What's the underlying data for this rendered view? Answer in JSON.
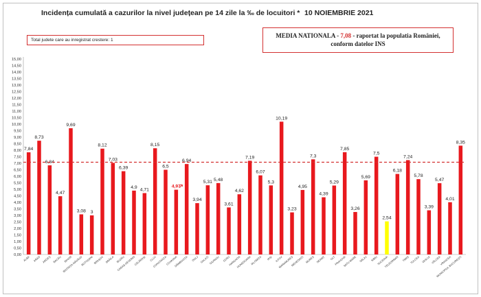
{
  "header": {
    "title": "Incidența cumulată a cazurilor la nivel județean pe 14 zile la ‰ de locuitori *",
    "date": "10 NOIEMBRIE 2021"
  },
  "info_left": "Total judete care au inregistrat crestere: 1",
  "info_right": {
    "prefix": "MEDIA NATIONALA - ",
    "value": "7,08",
    "suffix": " -  raportat la populatia României,",
    "line2": "conform datelor INS"
  },
  "colors": {
    "bar": "#e8191e",
    "highlight": "#ffff00",
    "average_line": "#d32f2f",
    "increase_label": "#e8191e"
  },
  "chart_data": {
    "type": "bar",
    "title": "Incidența cumulată a cazurilor la nivel județean pe 14 zile la ‰ de locuitori *",
    "ylim": [
      0,
      15
    ],
    "ytick_step": 0.5,
    "average": 7.08,
    "categories": [
      "ALBA",
      "ARAD",
      "ARGEȘ",
      "BACĂU",
      "BIHOR",
      "BISTRIȚA-NĂSĂUD",
      "BOTOȘANI",
      "BRAȘOV",
      "BRĂILA",
      "BUZĂU",
      "CARAȘ-SEVERIN",
      "CĂLĂRAȘI",
      "CLUJ",
      "CONSTANȚA",
      "COVASNA",
      "DÂMBOVIȚA",
      "DOLJ",
      "GALAȚI",
      "GIURGIU",
      "GORJ",
      "HARGHITA",
      "HUNEDOARA",
      "IALOMIȚA",
      "IAȘI",
      "ILFOV",
      "MARAMUREȘ",
      "MEHEDINȚI",
      "MUREȘ",
      "NEAMȚ",
      "OLT",
      "PRAHOVA",
      "SATU MARE",
      "SĂLAJ",
      "SIBIU",
      "SUCEAVA",
      "TELEORMAN",
      "TIMIȘ",
      "TULCEA",
      "VASLUI",
      "VÂLCEA",
      "VRANCEA",
      "MUNICIPIUL BUCUREȘTI"
    ],
    "values": [
      7.84,
      8.73,
      6.84,
      4.47,
      9.69,
      3.08,
      3,
      8.12,
      7.03,
      6.39,
      4.9,
      4.71,
      8.15,
      6.5,
      4.97,
      6.94,
      3.94,
      5.31,
      5.48,
      3.61,
      4.62,
      7.19,
      6.07,
      5.3,
      10.19,
      3.23,
      4.95,
      7.3,
      4.39,
      5.29,
      7.85,
      3.26,
      5.69,
      7.5,
      2.54,
      6.18,
      7.24,
      5.78,
      3.39,
      5.47,
      4.01,
      8.35
    ],
    "labels": [
      "7,84",
      "8,73",
      "6,84",
      "4,47",
      "9,69",
      "3,08",
      "3",
      "8,12",
      "7,03",
      "6,39",
      "4,9",
      "4,71",
      "8,15",
      "6,5",
      "4,97",
      "6,94",
      "3,94",
      "5,31",
      "5,48",
      "3,61",
      "4,62",
      "7,19",
      "6,07",
      "5,3",
      "10,19",
      "3,23",
      "4,95",
      "7,3",
      "4,39",
      "5,29",
      "7,85",
      "3,26",
      "5,69",
      "7,5",
      "2,54",
      "6,18",
      "7,24",
      "5,78",
      "3,39",
      "5,47",
      "4,01",
      "8,35"
    ],
    "highlighted": [
      "SUCEAVA"
    ],
    "increase": [
      "COVASNA"
    ],
    "increase_icon": "arrow-up-right-icon"
  }
}
